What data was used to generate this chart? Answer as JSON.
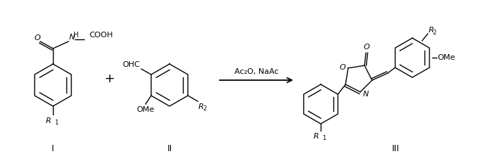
{
  "background_color": "#ffffff",
  "line_color": "#000000",
  "label_I": "I",
  "label_II": "II",
  "label_III": "III",
  "reaction_conditions": "Ac₂O, NaAc",
  "plus_sign": "+",
  "figsize": [
    6.98,
    2.3
  ],
  "dpi": 100
}
